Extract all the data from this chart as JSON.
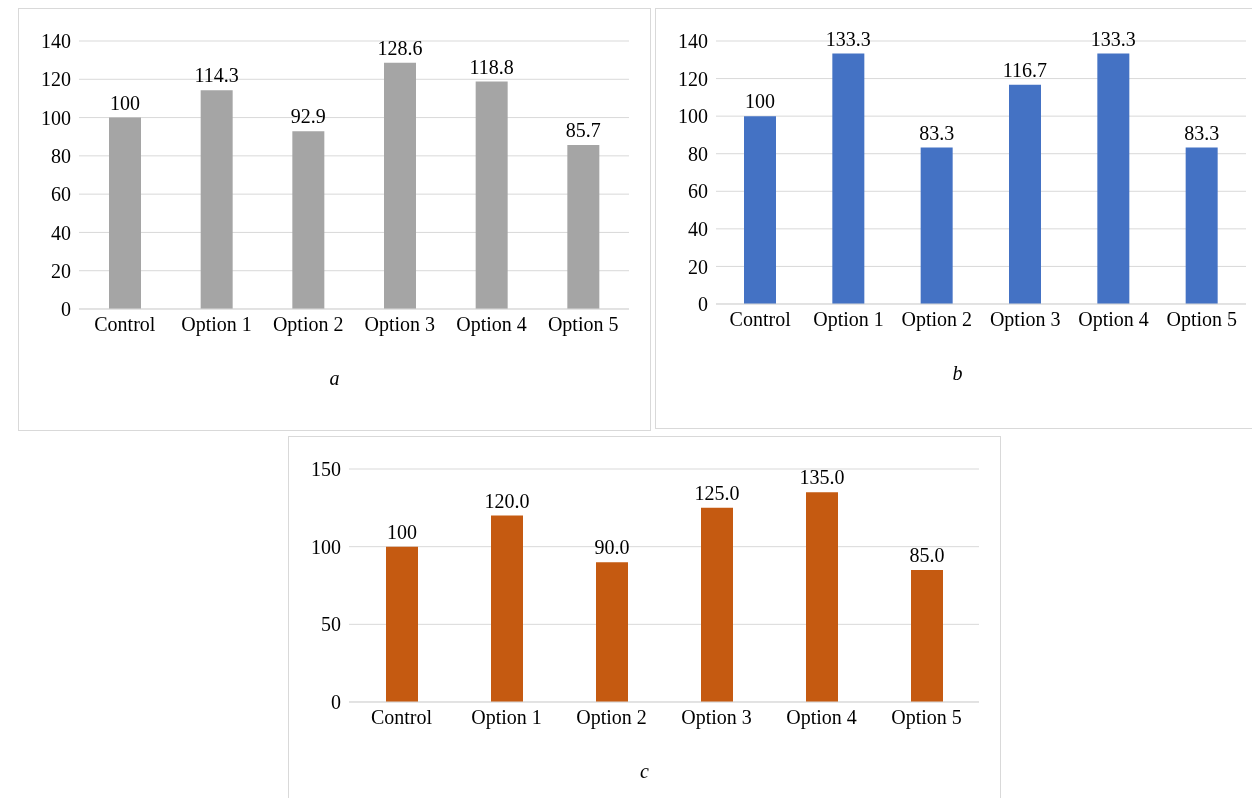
{
  "chart_data": [
    {
      "type": "bar",
      "title": "a",
      "categories": [
        "Control",
        "Option 1",
        "Option 2",
        "Option 3",
        "Option 4",
        "Option 5"
      ],
      "values": [
        100,
        114.3,
        92.9,
        128.6,
        118.8,
        85.7
      ],
      "color": "#a5a5a5",
      "ylim": [
        0,
        140
      ],
      "yticks": [
        0,
        20,
        40,
        60,
        80,
        100,
        120,
        140
      ],
      "grid": "y",
      "data_labels": true
    },
    {
      "type": "bar",
      "title": "b",
      "categories": [
        "Control",
        "Option 1",
        "Option 2",
        "Option 3",
        "Option 4",
        "Option 5"
      ],
      "values": [
        100,
        133.3,
        83.3,
        116.7,
        133.3,
        83.3
      ],
      "color": "#4472c4",
      "ylim": [
        0,
        140
      ],
      "yticks": [
        0,
        20,
        40,
        60,
        80,
        100,
        120,
        140
      ],
      "grid": "y",
      "data_labels": true
    },
    {
      "type": "bar",
      "title": "c",
      "categories": [
        "Control",
        "Option 1",
        "Option 2",
        "Option 3",
        "Option 4",
        "Option 5"
      ],
      "values": [
        100,
        120,
        90,
        125,
        135,
        85
      ],
      "value_labels": [
        "100",
        "120.0",
        "90.0",
        "125.0",
        "135.0",
        "85.0"
      ],
      "color": "#c55a11",
      "ylim": [
        0,
        150
      ],
      "yticks": [
        0,
        50,
        100,
        150
      ],
      "grid": "y"
    }
  ]
}
